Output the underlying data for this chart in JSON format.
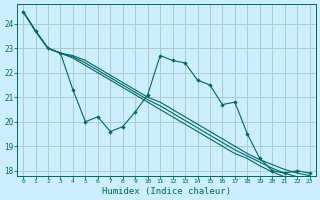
{
  "xlabel": "Humidex (Indice chaleur)",
  "background_color": "#cceeff",
  "grid_color": "#aacccc",
  "line_color": "#006666",
  "xlim": [
    -0.5,
    23.5
  ],
  "ylim": [
    17.8,
    24.8
  ],
  "yticks": [
    18,
    19,
    20,
    21,
    22,
    23,
    24
  ],
  "xticks": [
    0,
    1,
    2,
    3,
    4,
    5,
    6,
    7,
    8,
    9,
    10,
    11,
    12,
    13,
    14,
    15,
    16,
    17,
    18,
    19,
    20,
    21,
    22,
    23
  ],
  "series_zigzag": [
    24.5,
    23.7,
    23.0,
    22.8,
    21.3,
    20.0,
    20.2,
    19.6,
    19.8,
    20.4,
    21.1,
    22.7,
    22.5,
    22.4,
    21.7,
    21.5,
    20.7,
    20.8,
    19.5,
    18.5,
    18.0,
    17.9,
    18.0,
    17.9
  ],
  "series_straight": [
    [
      24.5,
      23.7,
      23.0,
      22.8,
      22.6,
      22.3,
      22.0,
      21.7,
      21.4,
      21.1,
      20.8,
      20.5,
      20.2,
      19.9,
      19.6,
      19.3,
      19.0,
      18.7,
      18.5,
      18.2,
      17.95,
      17.75,
      17.6,
      17.5
    ],
    [
      24.5,
      23.7,
      23.0,
      22.8,
      22.65,
      22.4,
      22.1,
      21.8,
      21.5,
      21.2,
      20.9,
      20.65,
      20.35,
      20.05,
      19.75,
      19.45,
      19.15,
      18.85,
      18.6,
      18.35,
      18.1,
      17.9,
      17.75,
      17.65
    ],
    [
      24.5,
      23.7,
      23.0,
      22.8,
      22.7,
      22.5,
      22.2,
      21.9,
      21.6,
      21.3,
      21.0,
      20.8,
      20.5,
      20.2,
      19.9,
      19.6,
      19.3,
      19.0,
      18.7,
      18.45,
      18.25,
      18.05,
      17.9,
      17.8
    ]
  ]
}
